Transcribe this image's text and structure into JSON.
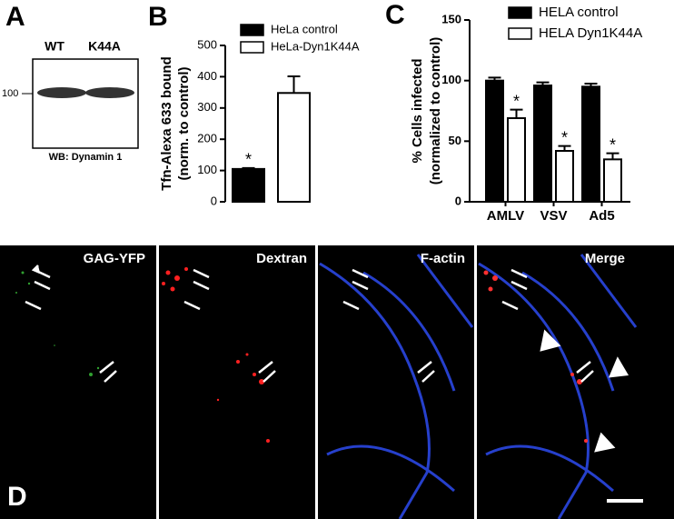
{
  "panel_labels": [
    "A",
    "B",
    "C",
    "D"
  ],
  "blot": {
    "lanes": [
      "WT",
      "K44A"
    ],
    "marker": "100",
    "caption": "WB: Dynamin 1"
  },
  "chart_data": [
    {
      "type": "bar",
      "ylabel": [
        "Tfn-Alexa 633 bound",
        "(norm. to control)"
      ],
      "series": [
        {
          "name": "HeLa control",
          "color": "#000000",
          "values": [
            105
          ],
          "errors": [
            3
          ],
          "significance": [
            "*"
          ]
        },
        {
          "name": "HeLa-Dyn1K44A",
          "color": "#ffffff",
          "values": [
            348
          ],
          "errors": [
            53
          ]
        }
      ],
      "ylim": [
        0,
        500
      ],
      "yticks": [
        0,
        100,
        200,
        300,
        400,
        500
      ]
    },
    {
      "type": "bar",
      "ylabel": [
        "% Cells infected",
        "(normalized to control)"
      ],
      "categories": [
        "AMLV",
        "VSV",
        "Ad5"
      ],
      "series": [
        {
          "name": "HELA control",
          "color": "#000000",
          "values": [
            100,
            96,
            95
          ],
          "errors": [
            2.5,
            2.5,
            2.5
          ]
        },
        {
          "name": "HELA Dyn1K44A",
          "color": "#ffffff",
          "values": [
            69,
            42,
            35
          ],
          "errors": [
            7,
            4,
            5
          ],
          "significance": [
            "*",
            "*",
            "*"
          ]
        }
      ],
      "ylim": [
        0,
        150
      ],
      "yticks": [
        0,
        50,
        100,
        150
      ]
    }
  ],
  "micrographs": [
    "GAG-YFP",
    "Dextran",
    "F-actin",
    "Merge"
  ]
}
